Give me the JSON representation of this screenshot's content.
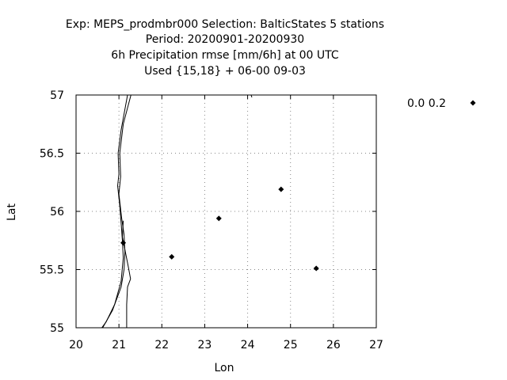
{
  "chart_data": {
    "type": "scatter",
    "title_lines": [
      "Exp: MEPS_prodmbr000   Selection: BalticStates      5 stations",
      "Period: 20200901-20200930",
      "6h Precipitation rmse [mm/6h] at  00 UTC",
      "Used {15,18} + 06-00 09-03"
    ],
    "xlabel": "Lon",
    "ylabel": "Lat",
    "xlim": [
      20,
      27
    ],
    "ylim": [
      55,
      57
    ],
    "x_ticks": [
      20,
      21,
      22,
      23,
      24,
      25,
      26,
      27
    ],
    "y_ticks": [
      55,
      55.5,
      56,
      56.5,
      57
    ],
    "x_tick_labels": [
      "20",
      "21",
      "22",
      "23",
      "24",
      "25",
      "26",
      "27"
    ],
    "y_tick_labels": [
      "55",
      "55.5",
      "56",
      "56.5",
      "57"
    ],
    "grid": true,
    "legend_position": "outside-top-right",
    "series": [
      {
        "name": "0.0 0.2",
        "marker": "diamond",
        "color": "#000000",
        "points": [
          {
            "x": 21.1,
            "y": 55.73
          },
          {
            "x": 22.23,
            "y": 55.61
          },
          {
            "x": 23.33,
            "y": 55.94
          },
          {
            "x": 24.78,
            "y": 56.19
          },
          {
            "x": 25.6,
            "y": 55.51
          }
        ]
      }
    ],
    "coastlines": [
      [
        [
          21.2,
          57.0
        ],
        [
          21.05,
          56.7
        ],
        [
          20.98,
          56.5
        ],
        [
          21.0,
          56.32
        ],
        [
          20.97,
          56.22
        ],
        [
          21.02,
          56.05
        ],
        [
          21.05,
          55.9
        ],
        [
          21.08,
          55.75
        ],
        [
          21.1,
          55.6
        ],
        [
          21.05,
          55.4
        ],
        [
          20.9,
          55.2
        ],
        [
          20.7,
          55.05
        ],
        [
          20.6,
          55.0
        ]
      ],
      [
        [
          21.28,
          57.0
        ],
        [
          21.1,
          56.75
        ],
        [
          21.02,
          56.5
        ],
        [
          21.04,
          56.3
        ],
        [
          21.0,
          56.15
        ],
        [
          21.06,
          55.95
        ],
        [
          21.12,
          55.8
        ],
        [
          21.14,
          55.65
        ],
        [
          21.12,
          55.5
        ],
        [
          21.05,
          55.35
        ],
        [
          20.85,
          55.15
        ],
        [
          20.62,
          55.0
        ]
      ],
      [
        [
          21.18,
          55.0
        ],
        [
          21.18,
          55.2
        ],
        [
          21.2,
          55.35
        ],
        [
          21.27,
          55.42
        ],
        [
          21.22,
          55.52
        ],
        [
          21.15,
          55.65
        ],
        [
          21.08,
          55.78
        ],
        [
          21.1,
          55.92
        ]
      ],
      [
        [
          24.08,
          57.0
        ],
        [
          24.1,
          56.98
        ]
      ]
    ]
  }
}
